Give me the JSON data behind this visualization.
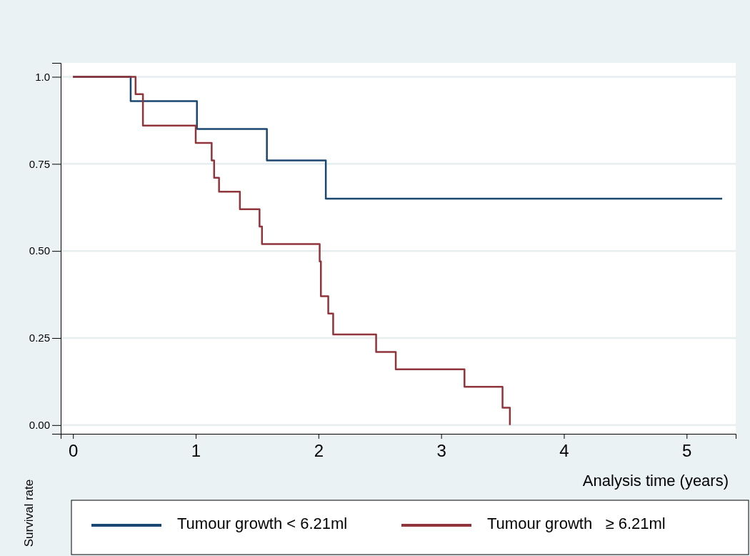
{
  "chart_data": {
    "type": "step",
    "xlabel": "Analysis time (years)",
    "ylabel": "Survival rate",
    "xlim": [
      -0.1,
      5.4
    ],
    "ylim": [
      -0.025,
      1.04
    ],
    "xticks": [
      0,
      1,
      2,
      3,
      4,
      5
    ],
    "yticks": [
      {
        "value": 0,
        "label": "0.00"
      },
      {
        "value": 0.25,
        "label": "0.25"
      },
      {
        "value": 0.5,
        "label": "0.50"
      },
      {
        "value": 0.75,
        "label": "0.75"
      },
      {
        "value": 1,
        "label": "1.0"
      }
    ],
    "grid": "y",
    "legend": "bottom",
    "line_style": "solid",
    "series": [
      {
        "name": "Tumour growth < 6.21ml",
        "color": "#1a476f",
        "x": [
          0,
          0.47,
          1.01,
          1.58,
          2.06,
          5.29
        ],
        "values": [
          1,
          0.93,
          0.85,
          0.76,
          0.65,
          0.65
        ]
      },
      {
        "name": "Tumour growth   ≥ 6.21ml",
        "color": "#90353b",
        "x": [
          0,
          0.51,
          0.57,
          1.0,
          1.13,
          1.15,
          1.19,
          1.36,
          1.52,
          1.54,
          2.01,
          2.02,
          2.08,
          2.12,
          2.47,
          2.63,
          3.19,
          3.5,
          3.56
        ],
        "values": [
          1,
          0.95,
          0.86,
          0.81,
          0.76,
          0.71,
          0.67,
          0.62,
          0.57,
          0.52,
          0.47,
          0.37,
          0.32,
          0.26,
          0.21,
          0.16,
          0.11,
          0.05,
          0
        ]
      }
    ]
  }
}
